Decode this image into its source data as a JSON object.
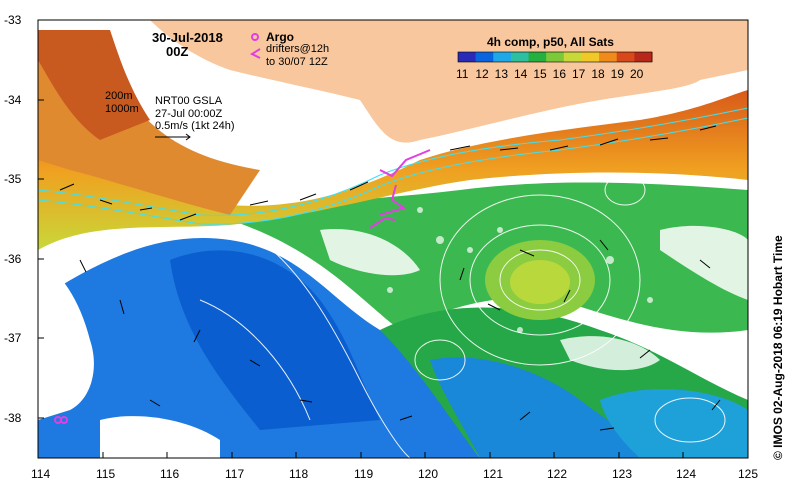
{
  "map": {
    "date": "30-Jul-2018",
    "time": "00Z",
    "legend_argo": "Argo",
    "legend_drifters_line1": "drifters@12h",
    "legend_drifters_line2": "to 30/07 12Z",
    "colorbar_title": "4h comp, p50, All Sats",
    "colorbar_ticks": [
      "11",
      "12",
      "13",
      "14",
      "15",
      "16",
      "17",
      "18",
      "19",
      "20"
    ],
    "colorbar_colors": [
      "#2a2ab8",
      "#0a64e0",
      "#1ea8e8",
      "#2cc0a0",
      "#26b040",
      "#7cc838",
      "#c8d838",
      "#f0c828",
      "#f08a1a",
      "#d8481a",
      "#b8281a"
    ],
    "contour_labels": [
      "200m",
      "1000m"
    ],
    "sla_label": "NRT00 GSLA",
    "sla_date": "27-Jul 00:00Z",
    "vector_scale": "0.5m/s (1kt 24h)",
    "x_ticks": [
      "114",
      "115",
      "116",
      "117",
      "118",
      "119",
      "120",
      "121",
      "122",
      "123",
      "124",
      "125"
    ],
    "y_ticks": [
      "-33",
      "-34",
      "-35",
      "-36",
      "-37",
      "-38"
    ],
    "credit": "© IMOS 02-Aug-2018 06:19 Hobart Time",
    "colors": {
      "land": "#f9c79d",
      "argo": "#e040e0",
      "contour": "#40e0f0",
      "border": "#000000"
    }
  }
}
